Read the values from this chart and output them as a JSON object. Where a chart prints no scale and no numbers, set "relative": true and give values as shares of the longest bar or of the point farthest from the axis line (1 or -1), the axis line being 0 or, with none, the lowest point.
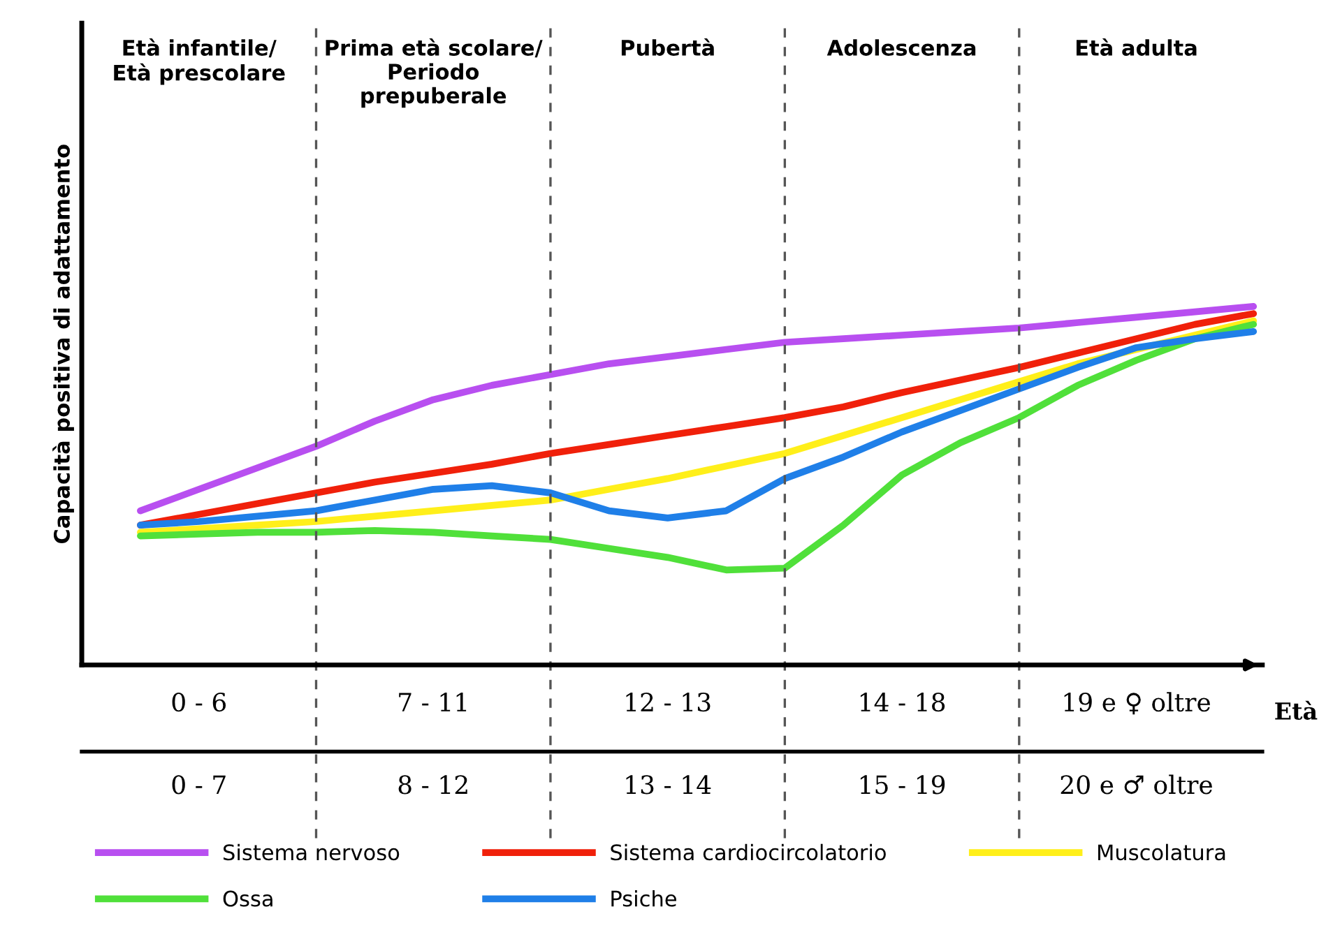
{
  "chart_data": {
    "type": "line",
    "relative": true,
    "xlabel": "Età",
    "ylabel": "Capacità positiva di adattamento",
    "legend": "bottom",
    "grid": "x",
    "marker": "none",
    "line_style": "solid",
    "categories": [
      null,
      "0 - 6",
      null,
      null,
      null,
      "7 - 11",
      null,
      null,
      null,
      "12 - 13",
      null,
      null,
      null,
      "14 - 18",
      null,
      null,
      null,
      "19 e ♀ oltre",
      null,
      null
    ],
    "series": [
      {
        "name": "Sistema nervoso",
        "color": "#b84ff0",
        "values": [
          0.43,
          0.49,
          0.55,
          0.61,
          0.68,
          0.74,
          0.78,
          0.81,
          0.84,
          0.86,
          0.88,
          0.9,
          0.91,
          0.92,
          0.93,
          0.94,
          0.955,
          0.97,
          0.985,
          1.0
        ]
      },
      {
        "name": "Sistema cardiocircolatorio",
        "color": "#f0200a",
        "values": [
          0.39,
          0.42,
          0.45,
          0.48,
          0.51,
          0.535,
          0.56,
          0.59,
          0.615,
          0.64,
          0.665,
          0.69,
          0.72,
          0.76,
          0.795,
          0.83,
          0.87,
          0.91,
          0.95,
          0.98
        ]
      },
      {
        "name": "Muscolatura",
        "color": "#ffef1a",
        "values": [
          0.37,
          0.38,
          0.39,
          0.4,
          0.415,
          0.43,
          0.445,
          0.46,
          0.49,
          0.52,
          0.555,
          0.59,
          0.64,
          0.69,
          0.74,
          0.79,
          0.84,
          0.88,
          0.92,
          0.96
        ]
      },
      {
        "name": "Ossa",
        "color": "#50e03a",
        "values": [
          0.36,
          0.365,
          0.37,
          0.37,
          0.375,
          0.37,
          0.36,
          0.35,
          0.325,
          0.3,
          0.265,
          0.27,
          0.39,
          0.53,
          0.62,
          0.69,
          0.78,
          0.85,
          0.91,
          0.95
        ]
      },
      {
        "name": "Psiche",
        "color": "#1f7fe8",
        "values": [
          0.39,
          0.4,
          0.415,
          0.43,
          0.46,
          0.49,
          0.5,
          0.48,
          0.43,
          0.41,
          0.43,
          0.52,
          0.58,
          0.65,
          0.71,
          0.77,
          0.83,
          0.885,
          0.91,
          0.93
        ]
      }
    ],
    "annotations": [
      "Età infantile/\nEtà prescolare",
      "Prima età scolare/\nPeriodo\nprepuberale",
      "Pubertà",
      "Adolescenza",
      "Età adulta",
      "0 - 7",
      "8 - 12",
      "13 - 14",
      "15 - 19",
      "20 e ♂ oltre"
    ]
  }
}
